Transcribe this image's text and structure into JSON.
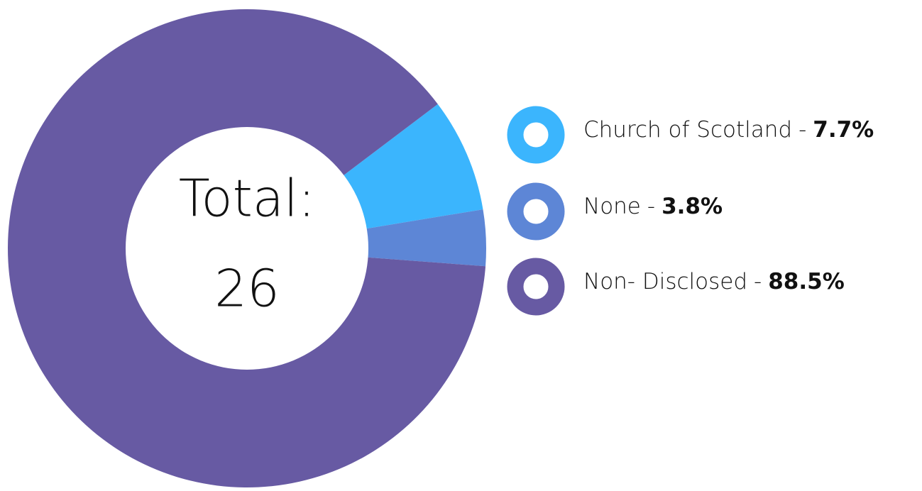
{
  "chart_data": {
    "type": "pie",
    "center_label": "Total:",
    "total": 26,
    "categories": [
      "Church of Scotland",
      "None",
      "Non- Disclosed"
    ],
    "values": [
      7.7,
      3.8,
      88.5
    ],
    "value_labels": [
      "7.7%",
      "3.8%",
      "88.5%"
    ],
    "legend_separator": "-",
    "colors": [
      "#3bb5fd",
      "#5d86d6",
      "#675aa3"
    ],
    "donut": true
  }
}
